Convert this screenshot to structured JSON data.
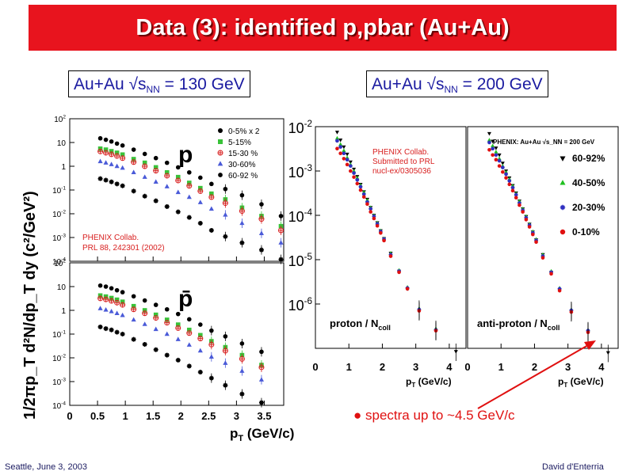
{
  "title": "Data (3): identified p,pbar (Au+Au)",
  "label_130": {
    "prefix": "Au+Au √s",
    "sub": "NN",
    "suffix": " = 130 GeV"
  },
  "label_200": {
    "prefix": "Au+Au √s",
    "sub": "NN",
    "suffix": " = 200 GeV"
  },
  "footer_left": "Seattle, June 3, 2003",
  "footer_right": "David d'Enterria",
  "arrow_note": "spectra up to ~4.5 GeV/c",
  "colors": {
    "title_bg": "#e8141e",
    "label_text": "#1a1aa0",
    "arrow": "#e01010"
  },
  "chart_data": [
    {
      "type": "scatter",
      "id": "panel-130-p",
      "particle_label": "p",
      "ylabel": "1/2πp_T d²N/dp_T dy (c²/GeV²)",
      "yscale": "log",
      "ylim": [
        0.0001,
        100
      ],
      "y_tick_labels": [
        "10^2",
        "10",
        "1",
        "10^-1",
        "10^-2",
        "10^-3",
        "10^-4"
      ],
      "annotation": [
        "PHENIX Collab.",
        "PRL 88, 242301 (2002)"
      ],
      "legend": [
        "0-5% x 2",
        "5-15%",
        "15-30 %",
        "30-60%",
        "60-92 %"
      ],
      "x": [
        0.55,
        0.65,
        0.75,
        0.85,
        0.95,
        1.15,
        1.35,
        1.55,
        1.75,
        1.95,
        2.15,
        2.35,
        2.55,
        2.8,
        3.1,
        3.45,
        3.8
      ],
      "series": [
        {
          "name": "0-5% x 2",
          "color": "#000000",
          "marker": "circle",
          "values": [
            15,
            13,
            11,
            9,
            7.5,
            5,
            3.3,
            2.2,
            1.4,
            0.9,
            0.55,
            0.33,
            0.18,
            0.11,
            0.06,
            0.025,
            0.008
          ]
        },
        {
          "name": "5-15%",
          "color": "#39c239",
          "marker": "square",
          "values": [
            5.5,
            5,
            4.3,
            3.7,
            3.1,
            2,
            1.4,
            0.9,
            0.55,
            0.35,
            0.2,
            0.12,
            0.07,
            0.04,
            0.018,
            0.008,
            0.003
          ]
        },
        {
          "name": "15-30 %",
          "color": "#d82020",
          "marker": "cross",
          "values": [
            4.2,
            3.7,
            3.2,
            2.7,
            2.2,
            1.5,
            1,
            0.65,
            0.4,
            0.25,
            0.15,
            0.09,
            0.05,
            0.028,
            0.013,
            0.006,
            0.002
          ]
        },
        {
          "name": "30-60%",
          "color": "#4a5ad8",
          "marker": "triangle",
          "values": [
            1.6,
            1.4,
            1.2,
            1,
            0.85,
            0.55,
            0.35,
            0.22,
            0.14,
            0.08,
            0.05,
            0.03,
            0.016,
            0.009,
            0.004,
            0.0015,
            0.0006
          ]
        },
        {
          "name": "60-92 %",
          "color": "#000000",
          "marker": "star",
          "values": [
            0.3,
            0.26,
            0.22,
            0.18,
            0.15,
            0.09,
            0.055,
            0.035,
            0.02,
            0.012,
            0.007,
            0.004,
            0.002,
            0.0011,
            0.0006,
            0.0003,
            0.00012
          ]
        }
      ]
    },
    {
      "type": "scatter",
      "id": "panel-130-pbar",
      "particle_label": "p̄",
      "yscale": "log",
      "ylim": [
        0.0001,
        100
      ],
      "xlabel": "p_T (GeV/c)",
      "xlim": [
        0,
        4
      ],
      "x_tick_labels": [
        "0",
        "0.5",
        "1",
        "1.5",
        "2",
        "2.5",
        "3",
        "3.5"
      ],
      "y_tick_labels": [
        "10^2",
        "10",
        "1",
        "10^-1",
        "10^-2",
        "10^-3",
        "10^-4"
      ],
      "x": [
        0.55,
        0.65,
        0.75,
        0.85,
        0.95,
        1.15,
        1.35,
        1.55,
        1.75,
        1.95,
        2.15,
        2.35,
        2.55,
        2.8,
        3.1,
        3.45
      ],
      "series": [
        {
          "name": "0-5% x 2",
          "color": "#000000",
          "marker": "circle",
          "values": [
            11,
            10,
            8.5,
            7,
            5.8,
            3.9,
            2.6,
            1.7,
            1.1,
            0.7,
            0.42,
            0.25,
            0.14,
            0.08,
            0.04,
            0.018
          ]
        },
        {
          "name": "5-15%",
          "color": "#39c239",
          "marker": "square",
          "values": [
            4.2,
            3.8,
            3.3,
            2.8,
            2.3,
            1.5,
            1,
            0.65,
            0.4,
            0.25,
            0.15,
            0.09,
            0.05,
            0.028,
            0.013,
            0.005
          ]
        },
        {
          "name": "15-30 %",
          "color": "#d82020",
          "marker": "cross",
          "values": [
            3.2,
            2.9,
            2.5,
            2.1,
            1.7,
            1.1,
            0.75,
            0.48,
            0.3,
            0.18,
            0.11,
            0.065,
            0.036,
            0.02,
            0.009,
            0.004
          ]
        },
        {
          "name": "30-60%",
          "color": "#4a5ad8",
          "marker": "triangle",
          "values": [
            1.2,
            1.05,
            0.9,
            0.75,
            0.62,
            0.4,
            0.26,
            0.16,
            0.1,
            0.06,
            0.035,
            0.02,
            0.011,
            0.006,
            0.0028,
            0.0012
          ]
        },
        {
          "name": "60-92 %",
          "color": "#000000",
          "marker": "star",
          "values": [
            0.2,
            0.17,
            0.15,
            0.12,
            0.1,
            0.06,
            0.037,
            0.022,
            0.013,
            0.008,
            0.0045,
            0.0025,
            0.0014,
            0.0007,
            0.0003,
            0.00013
          ]
        }
      ]
    },
    {
      "type": "scatter",
      "id": "panel-200-proton",
      "panel_label": "proton / N_coll",
      "yscale": "log",
      "ylim": [
        1e-07,
        0.01
      ],
      "y_tick_labels": [
        "10^-2",
        "10^-3",
        "10^-4",
        "10^-5",
        "10^-6"
      ],
      "xlabel": "p_T (GeV/c)",
      "xlim": [
        0,
        4.5
      ],
      "x_tick_labels": [
        "0",
        "1",
        "2",
        "3",
        "4"
      ],
      "annotation": [
        "PHENIX Collab.",
        "Submitted to PRL",
        "nucl-ex/0305036"
      ],
      "x": [
        0.65,
        0.75,
        0.85,
        0.95,
        1.05,
        1.15,
        1.25,
        1.35,
        1.45,
        1.55,
        1.65,
        1.75,
        1.85,
        1.95,
        2.05,
        2.25,
        2.5,
        2.75,
        3.1,
        3.6,
        4.2
      ],
      "series": [
        {
          "name": "60-92%",
          "color": "#000000",
          "marker": "triangle-down",
          "values": [
            0.0075,
            0.005,
            0.0035,
            0.0024,
            0.0016,
            0.0011,
            0.00075,
            0.0005,
            0.00034,
            0.00023,
            0.00015,
            0.0001,
            6.8e-05,
            4.5e-05,
            3e-05,
            1.4e-05,
            5.5e-06,
            2.2e-06,
            7e-07,
            2.5e-07,
            8.5e-08
          ]
        },
        {
          "name": "40-50%",
          "color": "#20c020",
          "marker": "triangle",
          "values": [
            0.0055,
            0.004,
            0.0029,
            0.002,
            0.0014,
            0.001,
            0.0007,
            0.00048,
            0.00033,
            0.00022,
            0.00015,
            0.0001,
            6.8e-05,
            4.5e-05,
            3e-05,
            1.4e-05,
            5.8e-06,
            2.4e-06,
            8e-07,
            2.8e-07
          ]
        },
        {
          "name": "20-30%",
          "color": "#3030c0",
          "marker": "star",
          "values": [
            0.0048,
            0.0035,
            0.0025,
            0.0018,
            0.0013,
            0.0009,
            0.00063,
            0.00044,
            0.0003,
            0.0002,
            0.00014,
            9.5e-05,
            6.4e-05,
            4.3e-05,
            2.9e-05,
            1.3e-05,
            5.5e-06,
            2.3e-06,
            7.5e-07,
            2.6e-07
          ]
        },
        {
          "name": "0-10%",
          "color": "#e01010",
          "marker": "circle",
          "values": [
            0.0032,
            0.0025,
            0.0019,
            0.0014,
            0.001,
            0.00073,
            0.00052,
            0.00037,
            0.00026,
            0.00018,
            0.00012,
            8.5e-05,
            5.8e-05,
            4e-05,
            2.7e-05,
            1.2e-05,
            5.2e-06,
            2.2e-06,
            7e-07,
            2.5e-07
          ]
        }
      ]
    },
    {
      "type": "scatter",
      "id": "panel-200-antiproton",
      "panel_label": "anti-proton / N_coll",
      "header": "PHENIX: Au+Au √s_NN = 200 GeV",
      "yscale": "log",
      "ylim": [
        1e-07,
        0.01
      ],
      "xlabel": "p_T (GeV/c)",
      "xlim": [
        0,
        4.5
      ],
      "x_tick_labels": [
        "0",
        "1",
        "2",
        "3",
        "4"
      ],
      "legend": [
        "60-92%",
        "40-50%",
        "20-30%",
        "0-10%"
      ],
      "x": [
        0.65,
        0.75,
        0.85,
        0.95,
        1.05,
        1.15,
        1.25,
        1.35,
        1.45,
        1.55,
        1.65,
        1.75,
        1.85,
        1.95,
        2.05,
        2.25,
        2.5,
        2.75,
        3.1,
        3.6,
        4.2
      ],
      "series": [
        {
          "name": "60-92%",
          "color": "#000000",
          "marker": "triangle-down",
          "values": [
            0.007,
            0.0047,
            0.0033,
            0.0023,
            0.0015,
            0.001,
            0.0007,
            0.00047,
            0.00032,
            0.00021,
            0.00014,
            9.4e-05,
            6.3e-05,
            4.2e-05,
            2.8e-05,
            1.3e-05,
            5.2e-06,
            2.1e-06,
            6.8e-07,
            2.4e-07,
            8e-08
          ]
        },
        {
          "name": "40-50%",
          "color": "#20c020",
          "marker": "triangle",
          "values": [
            0.005,
            0.0037,
            0.0027,
            0.0019,
            0.0013,
            0.00094,
            0.00066,
            0.00046,
            0.00031,
            0.00021,
            0.00014,
            9.5e-05,
            6.4e-05,
            4.3e-05,
            2.9e-05,
            1.3e-05,
            5.5e-06,
            2.3e-06,
            7.5e-07,
            2.6e-07
          ]
        },
        {
          "name": "20-30%",
          "color": "#3030c0",
          "marker": "star",
          "values": [
            0.0044,
            0.0032,
            0.0023,
            0.0017,
            0.0012,
            0.00085,
            0.0006,
            0.00042,
            0.00029,
            0.00019,
            0.00013,
            8.8e-05,
            6e-05,
            4e-05,
            2.7e-05,
            1.2e-05,
            5.2e-06,
            2.2e-06,
            7.2e-07,
            2.5e-07
          ]
        },
        {
          "name": "0-10%",
          "color": "#e01010",
          "marker": "circle",
          "values": [
            0.003,
            0.0023,
            0.0018,
            0.0013,
            0.00095,
            0.0007,
            0.0005,
            0.00036,
            0.00025,
            0.00017,
            0.00012,
            8e-05,
            5.5e-05,
            3.7e-05,
            2.5e-05,
            1.1e-05,
            4.8e-06,
            2e-06,
            6.6e-07,
            2.3e-07
          ]
        }
      ]
    }
  ]
}
